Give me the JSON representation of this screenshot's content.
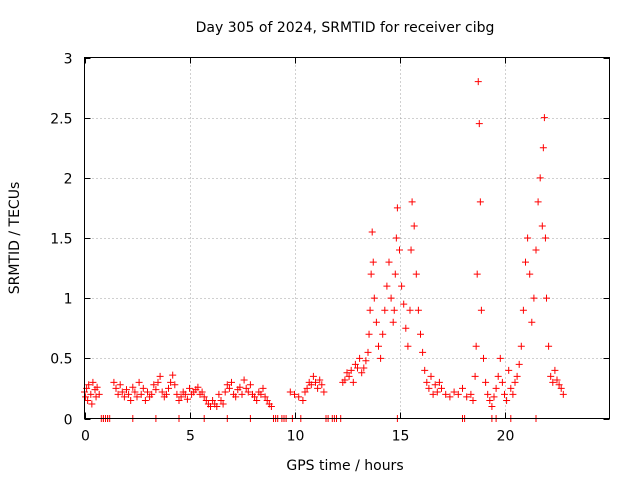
{
  "chart_data": {
    "type": "scatter",
    "title": "Day 305 of 2024, SRMTID for receiver cibg",
    "xlabel": "GPS time / hours",
    "ylabel": "SRMTID / TECUs",
    "xlim": [
      0,
      25
    ],
    "ylim": [
      0,
      3
    ],
    "xticks": [
      0,
      5,
      10,
      15,
      20
    ],
    "xtick_labels": [
      "0",
      "5",
      "10",
      "15",
      "20"
    ],
    "yticks": [
      0,
      0.5,
      1,
      1.5,
      2,
      2.5,
      3
    ],
    "ytick_labels": [
      "0",
      "0.5",
      "1",
      "1.5",
      "2",
      "2.5",
      "3"
    ],
    "grid": true,
    "marker": "+",
    "color": "#ff0000",
    "series": [
      {
        "name": "SRMTID",
        "x": [
          0.0,
          0.05,
          0.1,
          0.15,
          0.2,
          0.3,
          0.35,
          0.4,
          0.5,
          0.55,
          0.6,
          0.7,
          0.8,
          0.9,
          1.0,
          1.1,
          1.2,
          1.4,
          1.5,
          1.6,
          1.7,
          1.8,
          1.9,
          2.0,
          2.1,
          2.2,
          2.3,
          2.4,
          2.5,
          2.6,
          2.7,
          2.8,
          2.9,
          3.0,
          3.1,
          3.2,
          3.3,
          3.4,
          3.5,
          3.6,
          3.7,
          3.8,
          3.9,
          4.0,
          4.1,
          4.2,
          4.3,
          4.4,
          4.5,
          4.6,
          4.7,
          4.8,
          4.9,
          5.0,
          5.1,
          5.2,
          5.3,
          5.4,
          5.5,
          5.6,
          5.7,
          5.8,
          5.9,
          6.0,
          6.1,
          6.2,
          6.3,
          6.4,
          6.5,
          6.6,
          6.7,
          6.8,
          6.9,
          7.0,
          7.1,
          7.2,
          7.3,
          7.4,
          7.5,
          7.6,
          7.7,
          7.8,
          7.9,
          8.0,
          8.1,
          8.2,
          8.3,
          8.4,
          8.5,
          8.6,
          8.7,
          8.8,
          8.9,
          9.0,
          9.2,
          9.4,
          9.6,
          9.8,
          10.0,
          10.2,
          10.4,
          10.5,
          10.6,
          10.7,
          10.8,
          10.9,
          11.0,
          11.1,
          11.2,
          11.3,
          11.4,
          11.6,
          11.8,
          12.0,
          12.2,
          12.3,
          12.4,
          12.5,
          12.6,
          12.7,
          12.8,
          12.9,
          13.0,
          13.1,
          13.2,
          13.3,
          13.4,
          13.5,
          13.55,
          13.6,
          13.65,
          13.7,
          13.75,
          13.8,
          13.9,
          14.0,
          14.1,
          14.2,
          14.3,
          14.4,
          14.5,
          14.6,
          14.7,
          14.75,
          14.8,
          14.85,
          14.9,
          15.0,
          15.1,
          15.2,
          15.3,
          15.4,
          15.5,
          15.55,
          15.6,
          15.7,
          15.8,
          15.9,
          16.0,
          16.1,
          16.2,
          16.3,
          16.4,
          16.5,
          16.6,
          16.7,
          16.8,
          16.9,
          17.0,
          17.2,
          17.4,
          17.6,
          17.8,
          18.0,
          18.2,
          18.4,
          18.5,
          18.6,
          18.65,
          18.7,
          18.75,
          18.8,
          18.85,
          18.9,
          19.0,
          19.1,
          19.2,
          19.3,
          19.4,
          19.5,
          19.6,
          19.7,
          19.8,
          19.9,
          20.0,
          20.1,
          20.2,
          20.3,
          20.4,
          20.5,
          20.6,
          20.7,
          20.8,
          20.9,
          21.0,
          21.1,
          21.2,
          21.3,
          21.4,
          21.5,
          21.6,
          21.7,
          21.8,
          21.85,
          21.9,
          21.95,
          22.0,
          22.1,
          22.2,
          22.3,
          22.4,
          22.5,
          22.6,
          22.7,
          22.8,
          0.9,
          1.1,
          2.3,
          3.4,
          4.5,
          5.7,
          6.8,
          7.9,
          9.1,
          9.5,
          9.9,
          10.3,
          11.5,
          11.9,
          14.9,
          18.0,
          18.1,
          19.4,
          19.6,
          20.3,
          21.5
        ],
        "y": [
          0.22,
          0.18,
          0.25,
          0.15,
          0.28,
          0.2,
          0.12,
          0.3,
          0.24,
          0.18,
          0.26,
          0.2,
          0.0,
          0.0,
          0.0,
          0.0,
          0.0,
          0.3,
          0.25,
          0.2,
          0.28,
          0.22,
          0.18,
          0.24,
          0.2,
          0.15,
          0.26,
          0.22,
          0.18,
          0.3,
          0.2,
          0.25,
          0.15,
          0.22,
          0.18,
          0.2,
          0.28,
          0.24,
          0.3,
          0.35,
          0.22,
          0.18,
          0.2,
          0.25,
          0.3,
          0.36,
          0.28,
          0.2,
          0.15,
          0.18,
          0.22,
          0.2,
          0.16,
          0.25,
          0.2,
          0.22,
          0.24,
          0.26,
          0.2,
          0.22,
          0.18,
          0.15,
          0.12,
          0.1,
          0.15,
          0.12,
          0.1,
          0.2,
          0.15,
          0.12,
          0.22,
          0.28,
          0.25,
          0.3,
          0.2,
          0.18,
          0.24,
          0.26,
          0.2,
          0.32,
          0.25,
          0.22,
          0.28,
          0.2,
          0.18,
          0.15,
          0.22,
          0.2,
          0.25,
          0.18,
          0.15,
          0.12,
          0.1,
          0.0,
          0.0,
          0.0,
          0.0,
          0.22,
          0.2,
          0.18,
          0.15,
          0.22,
          0.25,
          0.3,
          0.28,
          0.35,
          0.3,
          0.25,
          0.32,
          0.28,
          0.22,
          0.0,
          0.0,
          0.0,
          0.0,
          0.3,
          0.32,
          0.38,
          0.35,
          0.4,
          0.3,
          0.45,
          0.42,
          0.5,
          0.38,
          0.42,
          0.48,
          0.55,
          0.7,
          0.9,
          1.2,
          1.55,
          1.3,
          1.0,
          0.8,
          0.6,
          0.5,
          0.7,
          0.9,
          1.1,
          1.3,
          1.0,
          0.8,
          0.9,
          1.2,
          1.5,
          1.75,
          1.4,
          1.1,
          0.95,
          0.75,
          0.6,
          0.9,
          1.4,
          1.8,
          1.6,
          1.2,
          0.9,
          0.7,
          0.55,
          0.4,
          0.3,
          0.25,
          0.35,
          0.2,
          0.28,
          0.22,
          0.3,
          0.25,
          0.2,
          0.18,
          0.22,
          0.2,
          0.25,
          0.18,
          0.2,
          0.15,
          0.35,
          0.6,
          1.2,
          2.8,
          2.45,
          1.8,
          0.9,
          0.5,
          0.3,
          0.2,
          0.15,
          0.1,
          0.18,
          0.25,
          0.35,
          0.5,
          0.3,
          0.2,
          0.15,
          0.4,
          0.25,
          0.2,
          0.3,
          0.35,
          0.45,
          0.6,
          0.9,
          1.3,
          1.5,
          1.2,
          0.8,
          1.0,
          1.4,
          1.8,
          2.0,
          1.6,
          2.25,
          2.5,
          1.5,
          1.0,
          0.6,
          0.35,
          0.3,
          0.4,
          0.32,
          0.28,
          0.25,
          0.2,
          0.0,
          0.0,
          0.0,
          0.0,
          0.0,
          0.0,
          0.0,
          0.0,
          0.0,
          0.0,
          0.0,
          0.0,
          0.0,
          0.0,
          0.0,
          0.0,
          0.0,
          0.0,
          0.0,
          0.0,
          0.0
        ]
      }
    ]
  }
}
